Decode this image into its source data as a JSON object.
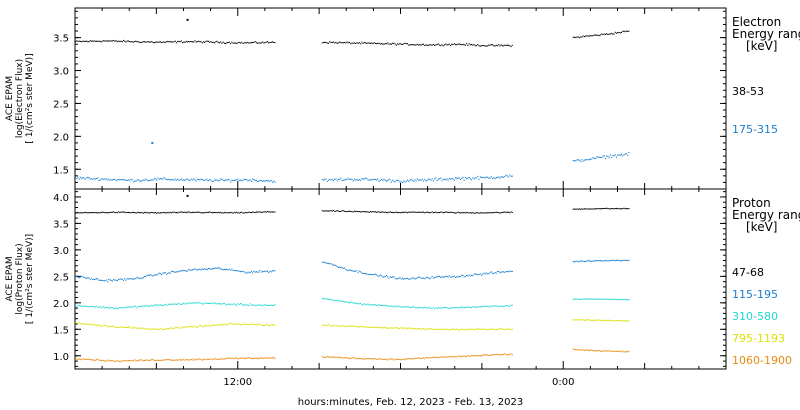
{
  "chart_data": [
    {
      "type": "scatter",
      "ylabel_lines": [
        "ACE EPAM",
        "log(Electron Flux)",
        "[ 1/(cm²s ster MeV)]"
      ],
      "ylim": [
        1.2,
        3.95
      ],
      "yticks": [
        1.5,
        2.0,
        2.5,
        3.0,
        3.5
      ],
      "ytick_labels": [
        "1.5",
        "2.0",
        "2.5",
        "3.0",
        "3.5"
      ],
      "legend_title": [
        "Electron",
        "Energy range",
        "[keV]"
      ],
      "series": [
        {
          "name": "38-53",
          "color": "#000000",
          "segments": [
            {
              "x_start": 0,
              "x_end": 14.7,
              "mean": [
                3.44,
                3.45,
                3.44,
                3.43,
                3.44,
                3.43,
                3.42,
                3.43
              ],
              "noise": 0.02
            },
            {
              "x_start": 18.2,
              "x_end": 32.2,
              "mean": [
                3.43,
                3.42,
                3.41,
                3.4,
                3.39,
                3.4,
                3.38,
                3.38
              ],
              "noise": 0.02
            },
            {
              "x_start": 36.7,
              "x_end": 40.8,
              "mean": [
                3.5,
                3.53,
                3.56,
                3.6
              ],
              "noise": 0.02
            }
          ],
          "outliers": [
            {
              "x": 8.3,
              "y": 3.77
            }
          ]
        },
        {
          "name": "175-315",
          "color": "#1a7fd0",
          "segments": [
            {
              "x_start": 0,
              "x_end": 14.7,
              "mean": [
                1.37,
                1.35,
                1.33,
                1.35,
                1.34,
                1.33,
                1.34,
                1.32
              ],
              "noise": 0.03
            },
            {
              "x_start": 18.2,
              "x_end": 32.2,
              "mean": [
                1.33,
                1.35,
                1.34,
                1.32,
                1.34,
                1.36,
                1.37,
                1.4
              ],
              "noise": 0.035
            },
            {
              "x_start": 36.7,
              "x_end": 40.8,
              "mean": [
                1.62,
                1.66,
                1.7,
                1.73
              ],
              "noise": 0.03
            }
          ],
          "outliers": [
            {
              "x": 5.7,
              "y": 1.9
            }
          ]
        }
      ]
    },
    {
      "type": "scatter",
      "ylabel_lines": [
        "ACE EPAM",
        "log(Proton Flux)",
        "[ 1/(cm²s ster MeV)]"
      ],
      "ylim": [
        0.75,
        4.15
      ],
      "yticks": [
        1.0,
        1.5,
        2.0,
        2.5,
        3.0,
        3.5,
        4.0
      ],
      "ytick_labels": [
        "1.0",
        "1.5",
        "2.0",
        "2.5",
        "3.0",
        "3.5",
        "4.0"
      ],
      "legend_title": [
        "Proton",
        "Energy range",
        "[keV]"
      ],
      "series": [
        {
          "name": "47-68",
          "color": "#000000",
          "segments": [
            {
              "x_start": 0,
              "x_end": 14.7,
              "mean": [
                3.7,
                3.71,
                3.7,
                3.71,
                3.7,
                3.72
              ],
              "noise": 0.015
            },
            {
              "x_start": 18.2,
              "x_end": 32.2,
              "mean": [
                3.74,
                3.72,
                3.71,
                3.71,
                3.7,
                3.71
              ],
              "noise": 0.015
            },
            {
              "x_start": 36.7,
              "x_end": 40.8,
              "mean": [
                3.77,
                3.78,
                3.78
              ],
              "noise": 0.01
            }
          ],
          "outliers": [
            {
              "x": 8.3,
              "y": 4.02
            }
          ]
        },
        {
          "name": "115-195",
          "color": "#1a7fd0",
          "segments": [
            {
              "x_start": 0,
              "x_end": 14.7,
              "mean": [
                2.5,
                2.42,
                2.45,
                2.55,
                2.62,
                2.65,
                2.58,
                2.6
              ],
              "noise": 0.03
            },
            {
              "x_start": 18.2,
              "x_end": 32.2,
              "mean": [
                2.78,
                2.62,
                2.52,
                2.45,
                2.48,
                2.5,
                2.55,
                2.6
              ],
              "noise": 0.03
            },
            {
              "x_start": 36.7,
              "x_end": 40.8,
              "mean": [
                2.78,
                2.8,
                2.8
              ],
              "noise": 0.015
            }
          ]
        },
        {
          "name": "310-580",
          "color": "#22d8d0",
          "segments": [
            {
              "x_start": 0,
              "x_end": 14.7,
              "mean": [
                1.95,
                1.9,
                1.95,
                2.0,
                1.97,
                1.95
              ],
              "noise": 0.025
            },
            {
              "x_start": 18.2,
              "x_end": 32.2,
              "mean": [
                2.08,
                1.98,
                1.93,
                1.9,
                1.92,
                1.95
              ],
              "noise": 0.02
            },
            {
              "x_start": 36.7,
              "x_end": 40.8,
              "mean": [
                2.07,
                2.07,
                2.06
              ],
              "noise": 0.01
            }
          ]
        },
        {
          "name": "795-1193",
          "color": "#d8e000",
          "segments": [
            {
              "x_start": 0,
              "x_end": 14.7,
              "mean": [
                1.62,
                1.55,
                1.5,
                1.55,
                1.6,
                1.58
              ],
              "noise": 0.025
            },
            {
              "x_start": 18.2,
              "x_end": 32.2,
              "mean": [
                1.58,
                1.55,
                1.52,
                1.5,
                1.5,
                1.5
              ],
              "noise": 0.02
            },
            {
              "x_start": 36.7,
              "x_end": 40.8,
              "mean": [
                1.68,
                1.67,
                1.66
              ],
              "noise": 0.01
            }
          ]
        },
        {
          "name": "1060-1900",
          "color": "#e88a10",
          "segments": [
            {
              "x_start": 0,
              "x_end": 14.7,
              "mean": [
                0.95,
                0.9,
                0.92,
                0.93,
                0.95,
                0.96
              ],
              "noise": 0.02
            },
            {
              "x_start": 18.2,
              "x_end": 32.2,
              "mean": [
                0.98,
                0.95,
                0.93,
                0.97,
                1.0,
                1.03
              ],
              "noise": 0.02
            },
            {
              "x_start": 36.7,
              "x_end": 40.8,
              "mean": [
                1.12,
                1.09,
                1.08
              ],
              "noise": 0.015
            }
          ]
        }
      ]
    }
  ],
  "x_axis": {
    "unit": "hours",
    "range": [
      0,
      48
    ],
    "major_ticks": [
      {
        "x": 12,
        "label": "12:00"
      },
      {
        "x": 36,
        "label": "0:00"
      }
    ],
    "minor_tick_step": 2,
    "xlabel": "hours:minutes, Feb. 12, 2023 - Feb. 13, 2023"
  }
}
